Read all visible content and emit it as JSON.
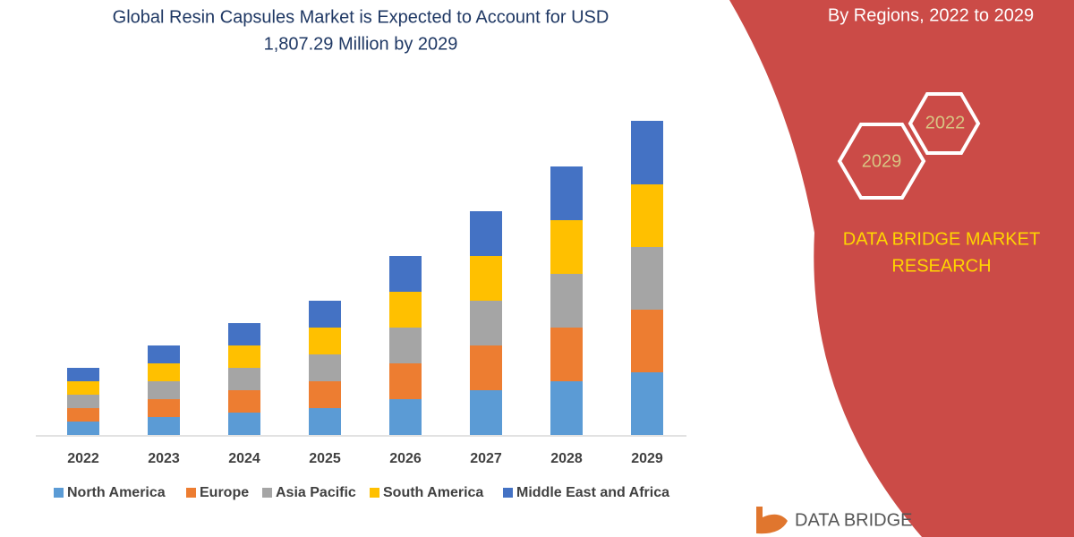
{
  "chart_data": {
    "type": "stacked_bar",
    "title": [
      "Global Resin Capsules Market is Expected to Account for USD",
      "1,807.29 Million by 2029"
    ],
    "categories": [
      "2022",
      "2023",
      "2024",
      "2025",
      "2026",
      "2027",
      "2028",
      "2029"
    ],
    "series": [
      {
        "name": "North America",
        "color": "#5b9bd5",
        "values": [
          15,
          20,
          25,
          30,
          40,
          50,
          60,
          70
        ]
      },
      {
        "name": "Europe",
        "color": "#ed7d31",
        "values": [
          15,
          20,
          25,
          30,
          40,
          50,
          60,
          70
        ]
      },
      {
        "name": "Asia Pacific",
        "color": "#a5a5a5",
        "values": [
          15,
          20,
          25,
          30,
          40,
          50,
          60,
          70
        ]
      },
      {
        "name": "South America",
        "color": "#ffc000",
        "values": [
          15,
          20,
          25,
          30,
          40,
          50,
          60,
          70
        ]
      },
      {
        "name": "Middle East and Africa",
        "color": "#4472c4",
        "values": [
          15,
          20,
          25,
          30,
          40,
          50,
          60,
          71
        ]
      }
    ],
    "ylim": [
      0,
      360
    ],
    "legend": "bottom"
  },
  "side_panel": {
    "subtitle": "By Regions, 2022 to 2029",
    "hexagons": [
      "2022",
      "2029"
    ],
    "brand": [
      "DATA BRIDGE MARKET",
      "RESEARCH"
    ]
  },
  "footer_logo": "DATA BRIDGE"
}
